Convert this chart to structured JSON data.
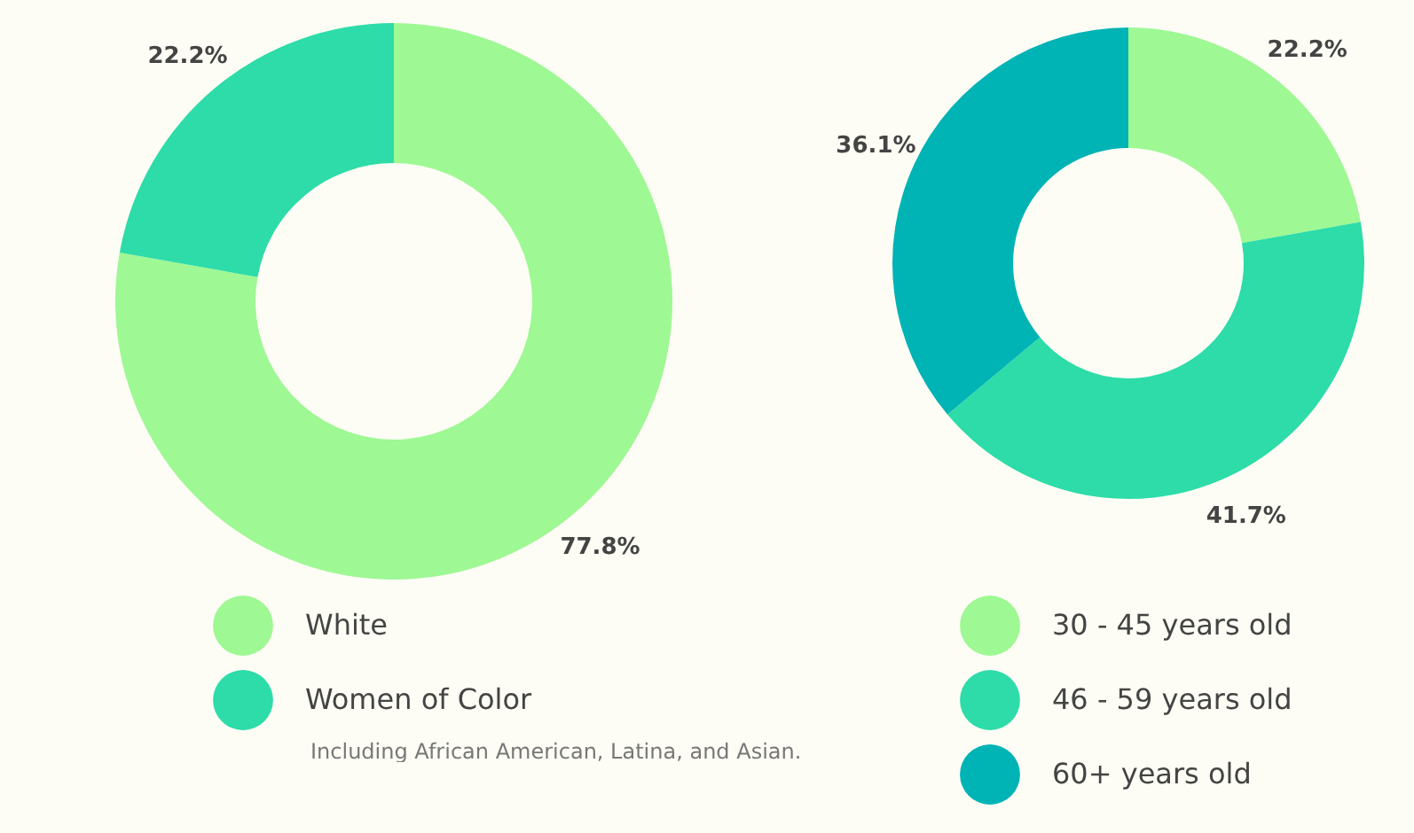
{
  "chart_data": [
    {
      "type": "donut",
      "categories": [
        "White",
        "Women of Color"
      ],
      "values": [
        77.8,
        22.2
      ],
      "colors": [
        "#9ef893",
        "#2ddca8"
      ],
      "value_labels": [
        "77.8%",
        "22.2%"
      ],
      "legend": "bottom",
      "annotations": [
        "Including African American, Latina, and Asian."
      ]
    },
    {
      "type": "donut",
      "categories": [
        "30 - 45 years old",
        "46 - 59 years old",
        "60+ years old"
      ],
      "values": [
        22.2,
        41.7,
        36.1
      ],
      "colors": [
        "#9ef893",
        "#2ddca8",
        "#00b3b5"
      ],
      "value_labels": [
        "22.2%",
        "41.7%",
        "36.1%"
      ],
      "legend": "bottom"
    }
  ]
}
